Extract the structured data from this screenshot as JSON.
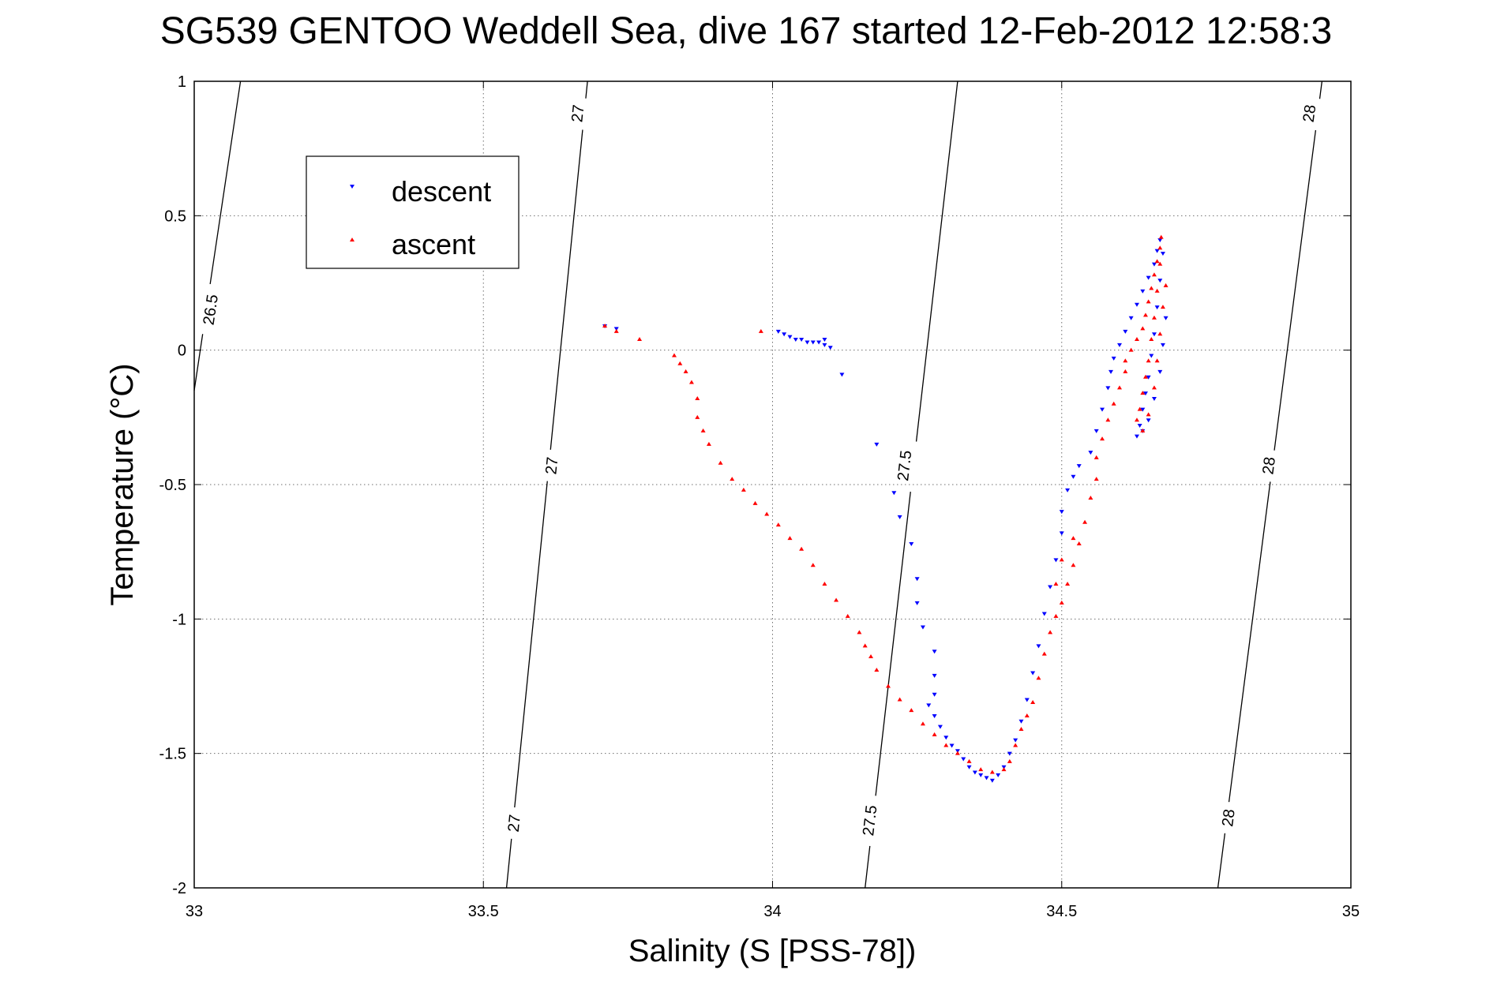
{
  "chart_data": {
    "type": "scatter",
    "title": "SG539 GENTOO Weddell Sea, dive 167 started 12-Feb-2012 12:58:3",
    "xlabel": "Salinity (S [PSS-78])",
    "ylabel": "Temperature (°C)",
    "xlim": [
      33,
      35
    ],
    "ylim": [
      -2,
      1
    ],
    "xticks": [
      33,
      33.5,
      34,
      34.5,
      35
    ],
    "xtick_labels": [
      "33",
      "33.5",
      "34",
      "34.5",
      "35"
    ],
    "yticks": [
      -2,
      -1.5,
      -1,
      -0.5,
      0,
      0.5,
      1
    ],
    "ytick_labels": [
      "-2",
      "-1.5",
      "-1",
      "-0.5",
      "0",
      "0.5",
      "1"
    ],
    "grid": true,
    "legend": {
      "position": "upper-left",
      "entries": [
        "descent",
        "ascent"
      ]
    },
    "colors": {
      "descent": "#0000ff",
      "ascent": "#ff0000",
      "isopycnal": "#000000"
    },
    "isopycnals": [
      {
        "name": "26.5",
        "points": [
          [
            33.0,
            -0.15
          ],
          [
            33.08,
            1.0
          ]
        ],
        "labels": [
          {
            "text": "26.5",
            "at": [
              33.03,
              0.15
            ]
          }
        ]
      },
      {
        "name": "27",
        "points": [
          [
            33.54,
            -2.0
          ],
          [
            33.68,
            1.0
          ]
        ],
        "labels": [
          {
            "text": "27",
            "at": [
              33.555,
              -1.76
            ]
          },
          {
            "text": "27",
            "at": [
              33.62,
              -0.43
            ]
          },
          {
            "text": "27",
            "at": [
              33.665,
              0.88
            ]
          }
        ]
      },
      {
        "name": "27.5",
        "points": [
          [
            34.16,
            -2.0
          ],
          [
            34.32,
            1.0
          ]
        ],
        "labels": [
          {
            "text": "27.5",
            "at": [
              34.17,
              -1.75
            ]
          },
          {
            "text": "27.5",
            "at": [
              34.23,
              -0.43
            ]
          }
        ]
      },
      {
        "name": "28",
        "points": [
          [
            34.77,
            -2.0
          ],
          [
            34.95,
            1.0
          ]
        ],
        "labels": [
          {
            "text": "28",
            "at": [
              34.79,
              -1.74
            ]
          },
          {
            "text": "28",
            "at": [
              34.86,
              -0.43
            ]
          },
          {
            "text": "28",
            "at": [
              34.93,
              0.88
            ]
          }
        ]
      }
    ],
    "series": [
      {
        "name": "descent",
        "marker": "triangle-down",
        "points": [
          [
            33.71,
            0.09
          ],
          [
            33.73,
            0.08
          ],
          [
            34.01,
            0.07
          ],
          [
            34.02,
            0.06
          ],
          [
            34.03,
            0.05
          ],
          [
            34.04,
            0.04
          ],
          [
            34.05,
            0.04
          ],
          [
            34.06,
            0.03
          ],
          [
            34.07,
            0.03
          ],
          [
            34.08,
            0.03
          ],
          [
            34.09,
            0.02
          ],
          [
            34.09,
            0.04
          ],
          [
            34.1,
            0.01
          ],
          [
            34.12,
            -0.09
          ],
          [
            34.18,
            -0.35
          ],
          [
            34.21,
            -0.53
          ],
          [
            34.22,
            -0.62
          ],
          [
            34.24,
            -0.72
          ],
          [
            34.25,
            -0.85
          ],
          [
            34.25,
            -0.94
          ],
          [
            34.26,
            -1.03
          ],
          [
            34.28,
            -1.12
          ],
          [
            34.28,
            -1.21
          ],
          [
            34.28,
            -1.28
          ],
          [
            34.27,
            -1.32
          ],
          [
            34.28,
            -1.36
          ],
          [
            34.29,
            -1.4
          ],
          [
            34.3,
            -1.44
          ],
          [
            34.31,
            -1.47
          ],
          [
            34.32,
            -1.49
          ],
          [
            34.33,
            -1.52
          ],
          [
            34.34,
            -1.55
          ],
          [
            34.35,
            -1.57
          ],
          [
            34.36,
            -1.58
          ],
          [
            34.37,
            -1.59
          ],
          [
            34.38,
            -1.6
          ],
          [
            34.39,
            -1.58
          ],
          [
            34.4,
            -1.55
          ],
          [
            34.41,
            -1.5
          ],
          [
            34.42,
            -1.45
          ],
          [
            34.43,
            -1.38
          ],
          [
            34.44,
            -1.3
          ],
          [
            34.45,
            -1.2
          ],
          [
            34.46,
            -1.1
          ],
          [
            34.47,
            -0.98
          ],
          [
            34.48,
            -0.88
          ],
          [
            34.49,
            -0.78
          ],
          [
            34.5,
            -0.68
          ],
          [
            34.5,
            -0.6
          ],
          [
            34.51,
            -0.52
          ],
          [
            34.52,
            -0.47
          ],
          [
            34.53,
            -0.43
          ],
          [
            34.55,
            -0.38
          ],
          [
            34.56,
            -0.3
          ],
          [
            34.57,
            -0.22
          ],
          [
            34.58,
            -0.14
          ],
          [
            34.585,
            -0.08
          ],
          [
            34.59,
            -0.03
          ],
          [
            34.6,
            0.02
          ],
          [
            34.61,
            0.07
          ],
          [
            34.62,
            0.12
          ],
          [
            34.63,
            0.17
          ],
          [
            34.64,
            0.22
          ],
          [
            34.65,
            0.27
          ],
          [
            34.66,
            0.32
          ],
          [
            34.665,
            0.37
          ],
          [
            34.67,
            0.41
          ],
          [
            34.675,
            0.36
          ],
          [
            34.67,
            0.26
          ],
          [
            34.665,
            0.16
          ],
          [
            34.66,
            0.06
          ],
          [
            34.655,
            -0.02
          ],
          [
            34.65,
            -0.1
          ],
          [
            34.645,
            -0.16
          ],
          [
            34.64,
            -0.22
          ],
          [
            34.635,
            -0.28
          ],
          [
            34.63,
            -0.32
          ],
          [
            34.64,
            -0.3
          ],
          [
            34.65,
            -0.26
          ],
          [
            34.66,
            -0.18
          ],
          [
            34.67,
            -0.08
          ],
          [
            34.675,
            0.02
          ],
          [
            34.68,
            0.12
          ]
        ]
      },
      {
        "name": "ascent",
        "marker": "triangle-up",
        "points": [
          [
            33.71,
            0.09
          ],
          [
            33.73,
            0.07
          ],
          [
            33.77,
            0.04
          ],
          [
            33.98,
            0.07
          ],
          [
            33.83,
            -0.02
          ],
          [
            33.84,
            -0.05
          ],
          [
            33.85,
            -0.08
          ],
          [
            33.86,
            -0.12
          ],
          [
            33.87,
            -0.18
          ],
          [
            33.87,
            -0.25
          ],
          [
            33.88,
            -0.3
          ],
          [
            33.89,
            -0.35
          ],
          [
            33.91,
            -0.42
          ],
          [
            33.93,
            -0.48
          ],
          [
            33.95,
            -0.52
          ],
          [
            33.97,
            -0.57
          ],
          [
            33.99,
            -0.61
          ],
          [
            34.01,
            -0.65
          ],
          [
            34.03,
            -0.7
          ],
          [
            34.05,
            -0.74
          ],
          [
            34.07,
            -0.8
          ],
          [
            34.09,
            -0.87
          ],
          [
            34.11,
            -0.93
          ],
          [
            34.13,
            -0.99
          ],
          [
            34.15,
            -1.05
          ],
          [
            34.16,
            -1.1
          ],
          [
            34.17,
            -1.14
          ],
          [
            34.18,
            -1.19
          ],
          [
            34.2,
            -1.25
          ],
          [
            34.22,
            -1.3
          ],
          [
            34.24,
            -1.34
          ],
          [
            34.26,
            -1.39
          ],
          [
            34.28,
            -1.43
          ],
          [
            34.3,
            -1.47
          ],
          [
            34.32,
            -1.5
          ],
          [
            34.34,
            -1.53
          ],
          [
            34.36,
            -1.56
          ],
          [
            34.38,
            -1.57
          ],
          [
            34.4,
            -1.56
          ],
          [
            34.41,
            -1.53
          ],
          [
            34.42,
            -1.47
          ],
          [
            34.43,
            -1.41
          ],
          [
            34.44,
            -1.36
          ],
          [
            34.45,
            -1.31
          ],
          [
            34.46,
            -1.22
          ],
          [
            34.47,
            -1.13
          ],
          [
            34.48,
            -1.05
          ],
          [
            34.49,
            -0.99
          ],
          [
            34.5,
            -0.94
          ],
          [
            34.51,
            -0.87
          ],
          [
            34.52,
            -0.8
          ],
          [
            34.53,
            -0.72
          ],
          [
            34.54,
            -0.64
          ],
          [
            34.55,
            -0.55
          ],
          [
            34.56,
            -0.48
          ],
          [
            34.56,
            -0.4
          ],
          [
            34.57,
            -0.33
          ],
          [
            34.58,
            -0.26
          ],
          [
            34.59,
            -0.2
          ],
          [
            34.6,
            -0.14
          ],
          [
            34.61,
            -0.08
          ],
          [
            34.61,
            -0.04
          ],
          [
            34.62,
            0.0
          ],
          [
            34.63,
            0.04
          ],
          [
            34.64,
            0.08
          ],
          [
            34.645,
            0.13
          ],
          [
            34.65,
            0.18
          ],
          [
            34.655,
            0.23
          ],
          [
            34.66,
            0.28
          ],
          [
            34.665,
            0.33
          ],
          [
            34.67,
            0.38
          ],
          [
            34.672,
            0.42
          ],
          [
            34.67,
            0.32
          ],
          [
            34.665,
            0.22
          ],
          [
            34.66,
            0.12
          ],
          [
            34.655,
            0.04
          ],
          [
            34.65,
            -0.04
          ],
          [
            34.645,
            -0.1
          ],
          [
            34.64,
            -0.16
          ],
          [
            34.635,
            -0.22
          ],
          [
            34.63,
            -0.26
          ],
          [
            34.64,
            -0.3
          ],
          [
            34.65,
            -0.24
          ],
          [
            34.66,
            -0.14
          ],
          [
            34.665,
            -0.04
          ],
          [
            34.67,
            0.06
          ],
          [
            34.675,
            0.16
          ],
          [
            34.68,
            0.24
          ],
          [
            34.49,
            -0.87
          ],
          [
            34.5,
            -0.78
          ],
          [
            34.52,
            -0.7
          ]
        ]
      }
    ]
  }
}
